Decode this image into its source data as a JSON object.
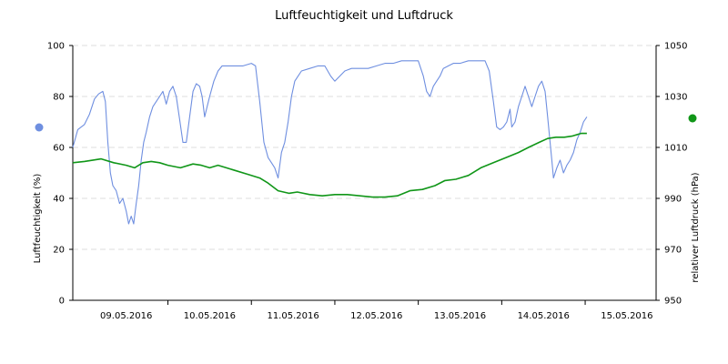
{
  "chart_data": {
    "type": "line",
    "title": "Luftfeuchtigkeit und Luftdruck",
    "grid": true,
    "x_tick_labels": [
      "09.05.2016",
      "10.05.2016",
      "11.05.2016",
      "12.05.2016",
      "13.05.2016",
      "14.05.2016",
      "15.05.2016"
    ],
    "x_domain": [
      8.36,
      15.35
    ],
    "y_left": {
      "label": "Luftfeuchtigkeit (%)",
      "range": [
        0,
        100
      ],
      "ticks": [
        0,
        20,
        40,
        60,
        80,
        100
      ]
    },
    "y_right": {
      "label": "relativer Luftdruck (hPa)",
      "range": [
        950,
        1050
      ],
      "ticks": [
        950,
        970,
        990,
        1010,
        1030,
        1050
      ]
    },
    "series": [
      {
        "axis": "left",
        "color": "#6f8fe0",
        "marker_color": "#6f8fe0",
        "points": [
          [
            8.36,
            60
          ],
          [
            8.42,
            67
          ],
          [
            8.5,
            69
          ],
          [
            8.56,
            73
          ],
          [
            8.62,
            79
          ],
          [
            8.67,
            81
          ],
          [
            8.72,
            82
          ],
          [
            8.75,
            78
          ],
          [
            8.78,
            62
          ],
          [
            8.81,
            50
          ],
          [
            8.84,
            45
          ],
          [
            8.88,
            43
          ],
          [
            8.92,
            38
          ],
          [
            8.96,
            40
          ],
          [
            9.0,
            35
          ],
          [
            9.03,
            30
          ],
          [
            9.06,
            33
          ],
          [
            9.09,
            30
          ],
          [
            9.12,
            38
          ],
          [
            9.15,
            45
          ],
          [
            9.18,
            55
          ],
          [
            9.21,
            62
          ],
          [
            9.24,
            66
          ],
          [
            9.28,
            72
          ],
          [
            9.32,
            76
          ],
          [
            9.36,
            78
          ],
          [
            9.4,
            80
          ],
          [
            9.44,
            82
          ],
          [
            9.48,
            77
          ],
          [
            9.52,
            82
          ],
          [
            9.56,
            84
          ],
          [
            9.6,
            80
          ],
          [
            9.64,
            71
          ],
          [
            9.68,
            62
          ],
          [
            9.72,
            62
          ],
          [
            9.76,
            72
          ],
          [
            9.8,
            82
          ],
          [
            9.84,
            85
          ],
          [
            9.88,
            84
          ],
          [
            9.91,
            80
          ],
          [
            9.94,
            72
          ],
          [
            9.97,
            76
          ],
          [
            10.0,
            80
          ],
          [
            10.05,
            86
          ],
          [
            10.1,
            90
          ],
          [
            10.15,
            92
          ],
          [
            10.2,
            92
          ],
          [
            10.3,
            92
          ],
          [
            10.4,
            92
          ],
          [
            10.5,
            93
          ],
          [
            10.55,
            92
          ],
          [
            10.6,
            78
          ],
          [
            10.65,
            62
          ],
          [
            10.7,
            56
          ],
          [
            10.74,
            54
          ],
          [
            10.78,
            52
          ],
          [
            10.82,
            48
          ],
          [
            10.86,
            58
          ],
          [
            10.9,
            62
          ],
          [
            10.94,
            70
          ],
          [
            10.98,
            80
          ],
          [
            11.02,
            86
          ],
          [
            11.06,
            88
          ],
          [
            11.1,
            90
          ],
          [
            11.2,
            91
          ],
          [
            11.3,
            92
          ],
          [
            11.38,
            92
          ],
          [
            11.45,
            88
          ],
          [
            11.5,
            86
          ],
          [
            11.56,
            88
          ],
          [
            11.62,
            90
          ],
          [
            11.7,
            91
          ],
          [
            11.8,
            91
          ],
          [
            11.9,
            91
          ],
          [
            12.0,
            92
          ],
          [
            12.1,
            93
          ],
          [
            12.2,
            93
          ],
          [
            12.3,
            94
          ],
          [
            12.4,
            94
          ],
          [
            12.5,
            94
          ],
          [
            12.56,
            88
          ],
          [
            12.6,
            82
          ],
          [
            12.64,
            80
          ],
          [
            12.68,
            84
          ],
          [
            12.72,
            86
          ],
          [
            12.76,
            88
          ],
          [
            12.8,
            91
          ],
          [
            12.86,
            92
          ],
          [
            12.92,
            93
          ],
          [
            13.0,
            93
          ],
          [
            13.1,
            94
          ],
          [
            13.2,
            94
          ],
          [
            13.3,
            94
          ],
          [
            13.35,
            90
          ],
          [
            13.4,
            78
          ],
          [
            13.44,
            68
          ],
          [
            13.48,
            67
          ],
          [
            13.52,
            68
          ],
          [
            13.56,
            70
          ],
          [
            13.6,
            75
          ],
          [
            13.62,
            68
          ],
          [
            13.66,
            70
          ],
          [
            13.7,
            76
          ],
          [
            13.74,
            80
          ],
          [
            13.78,
            84
          ],
          [
            13.82,
            80
          ],
          [
            13.86,
            76
          ],
          [
            13.9,
            80
          ],
          [
            13.94,
            84
          ],
          [
            13.98,
            86
          ],
          [
            14.02,
            82
          ],
          [
            14.05,
            72
          ],
          [
            14.08,
            62
          ],
          [
            14.1,
            55
          ],
          [
            14.12,
            48
          ],
          [
            14.16,
            52
          ],
          [
            14.2,
            55
          ],
          [
            14.24,
            50
          ],
          [
            14.28,
            53
          ],
          [
            14.32,
            55
          ],
          [
            14.36,
            58
          ],
          [
            14.4,
            63
          ],
          [
            14.44,
            66
          ],
          [
            14.48,
            70
          ],
          [
            14.52,
            72
          ]
        ]
      },
      {
        "axis": "right",
        "color": "#109618",
        "marker_color": "#109618",
        "points": [
          [
            8.36,
            1004
          ],
          [
            8.5,
            1004.5
          ],
          [
            8.7,
            1005.5
          ],
          [
            8.85,
            1004
          ],
          [
            9.0,
            1003
          ],
          [
            9.1,
            1002
          ],
          [
            9.2,
            1004
          ],
          [
            9.3,
            1004.5
          ],
          [
            9.4,
            1004
          ],
          [
            9.5,
            1003
          ],
          [
            9.65,
            1002
          ],
          [
            9.8,
            1003.5
          ],
          [
            9.9,
            1003
          ],
          [
            10.0,
            1002
          ],
          [
            10.1,
            1003
          ],
          [
            10.2,
            1002
          ],
          [
            10.3,
            1001
          ],
          [
            10.45,
            999.5
          ],
          [
            10.6,
            998
          ],
          [
            10.7,
            996
          ],
          [
            10.82,
            993
          ],
          [
            10.95,
            992
          ],
          [
            11.05,
            992.5
          ],
          [
            11.2,
            991.5
          ],
          [
            11.35,
            991
          ],
          [
            11.5,
            991.5
          ],
          [
            11.65,
            991.5
          ],
          [
            11.8,
            991
          ],
          [
            11.95,
            990.5
          ],
          [
            12.1,
            990.5
          ],
          [
            12.25,
            991
          ],
          [
            12.4,
            993
          ],
          [
            12.55,
            993.5
          ],
          [
            12.7,
            995
          ],
          [
            12.82,
            997
          ],
          [
            12.95,
            997.5
          ],
          [
            13.1,
            999
          ],
          [
            13.25,
            1002
          ],
          [
            13.4,
            1004
          ],
          [
            13.55,
            1006
          ],
          [
            13.7,
            1008
          ],
          [
            13.82,
            1010
          ],
          [
            13.95,
            1012
          ],
          [
            14.05,
            1013.5
          ],
          [
            14.15,
            1014
          ],
          [
            14.25,
            1014
          ],
          [
            14.35,
            1014.5
          ],
          [
            14.45,
            1015.5
          ],
          [
            14.52,
            1015.5
          ]
        ]
      }
    ]
  }
}
